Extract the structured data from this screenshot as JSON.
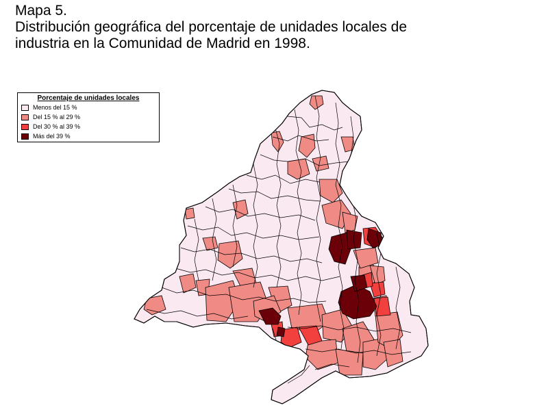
{
  "title": {
    "line1": "Mapa 5.",
    "line2": "Distribución geográfica del porcentaje de unidades locales de",
    "line3": "industria en la Comunidad de Madrid en 1998."
  },
  "legend": {
    "title": "Porcentaje de unidades locales",
    "items": [
      {
        "label": "Menos del 15 %",
        "color": "#fbe9f2"
      },
      {
        "label": "Del 15 % al 29 %",
        "color": "#f08a84"
      },
      {
        "label": "Del 30 % al 39 %",
        "color": "#f2403f"
      },
      {
        "label": "Más del 39 %",
        "color": "#6b0008"
      }
    ]
  },
  "colors": {
    "outline": "#000000",
    "background": "#ffffff"
  }
}
